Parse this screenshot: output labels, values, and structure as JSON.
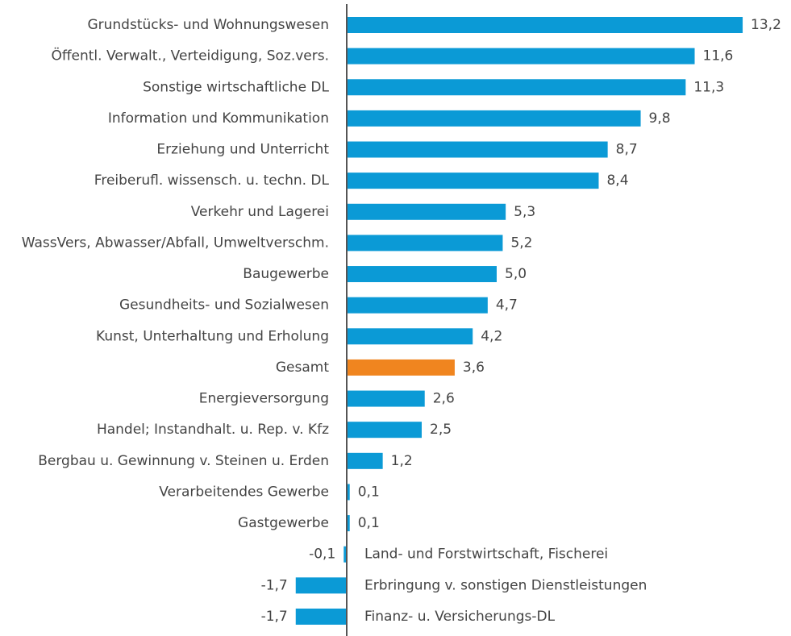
{
  "chart_data": {
    "type": "bar",
    "orientation": "horizontal",
    "categories": [
      "Grundstücks- und Wohnungswesen",
      "Öffentl. Verwalt., Verteidigung, Soz.vers.",
      "Sonstige wirtschaftliche DL",
      "Information und Kommunikation",
      "Erziehung und Unterricht",
      "Freiberufl. wissensch. u. techn. DL",
      "Verkehr und Lagerei",
      "WassVers, Abwasser/Abfall, Umweltverschm.",
      "Baugewerbe",
      "Gesundheits- und Sozialwesen",
      "Kunst, Unterhaltung und Erholung",
      "Gesamt",
      "Energieversorgung",
      "Handel; Instandhalt. u. Rep. v. Kfz",
      "Bergbau u. Gewinnung v. Steinen u. Erden",
      "Verarbeitendes Gewerbe",
      "Gastgewerbe",
      "Land- und Forstwirtschaft, Fischerei",
      "Erbringung v. sonstigen Dienstleistungen",
      "Finanz- u. Versicherungs-DL"
    ],
    "values": [
      13.2,
      11.6,
      11.3,
      9.8,
      8.7,
      8.4,
      5.3,
      5.2,
      5.0,
      4.7,
      4.2,
      3.6,
      2.6,
      2.5,
      1.2,
      0.1,
      0.1,
      -0.1,
      -1.7,
      -1.7
    ],
    "value_labels": [
      "13,2",
      "11,6",
      "11,3",
      "9,8",
      "8,7",
      "8,4",
      "5,3",
      "5,2",
      "5,0",
      "4,7",
      "4,2",
      "3,6",
      "2,6",
      "2,5",
      "1,2",
      "0,1",
      "0,1",
      "-0,1",
      "-1,7",
      "-1,7"
    ],
    "colors": [
      "#0b9ad6",
      "#0b9ad6",
      "#0b9ad6",
      "#0b9ad6",
      "#0b9ad6",
      "#0b9ad6",
      "#0b9ad6",
      "#0b9ad6",
      "#0b9ad6",
      "#0b9ad6",
      "#0b9ad6",
      "#f0851f",
      "#0b9ad6",
      "#0b9ad6",
      "#0b9ad6",
      "#0b9ad6",
      "#0b9ad6",
      "#0b9ad6",
      "#0b9ad6",
      "#0b9ad6"
    ]
  }
}
